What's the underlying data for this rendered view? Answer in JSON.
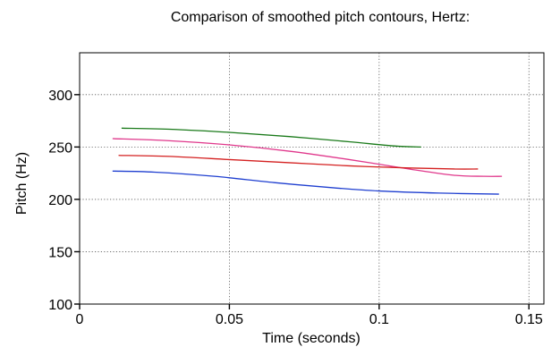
{
  "chart_data": {
    "type": "line",
    "title": "Comparison of smoothed pitch contours, Hertz:",
    "xlabel": "Time (seconds)",
    "ylabel": "Pitch (Hz)",
    "xlim": [
      0,
      0.155
    ],
    "ylim": [
      100,
      340
    ],
    "xticks": [
      0,
      0.05,
      0.1,
      0.15
    ],
    "xtick_labels": [
      "0",
      "0.05",
      "0.1",
      "0.15"
    ],
    "yticks": [
      100,
      150,
      200,
      250,
      300
    ],
    "ytick_labels": [
      "100",
      "150",
      "200",
      "250",
      "300"
    ],
    "grid": true,
    "series": [
      {
        "color": "#1a7a1a",
        "x": [
          0.014,
          0.03,
          0.05,
          0.07,
          0.09,
          0.105,
          0.114
        ],
        "y": [
          268,
          267,
          264,
          260,
          255,
          251,
          250
        ]
      },
      {
        "color": "#e0388c",
        "x": [
          0.011,
          0.03,
          0.05,
          0.07,
          0.09,
          0.11,
          0.125,
          0.135,
          0.141
        ],
        "y": [
          258,
          256,
          252,
          246,
          238,
          229,
          223,
          222,
          222
        ]
      },
      {
        "color": "#d42020",
        "x": [
          0.013,
          0.03,
          0.05,
          0.07,
          0.09,
          0.11,
          0.125,
          0.133
        ],
        "y": [
          242,
          241,
          238,
          235,
          232,
          230,
          229,
          229
        ]
      },
      {
        "color": "#1f3fd0",
        "x": [
          0.011,
          0.025,
          0.045,
          0.065,
          0.085,
          0.1,
          0.12,
          0.14
        ],
        "y": [
          227,
          226,
          222,
          216,
          211,
          208,
          206,
          205
        ]
      }
    ]
  }
}
